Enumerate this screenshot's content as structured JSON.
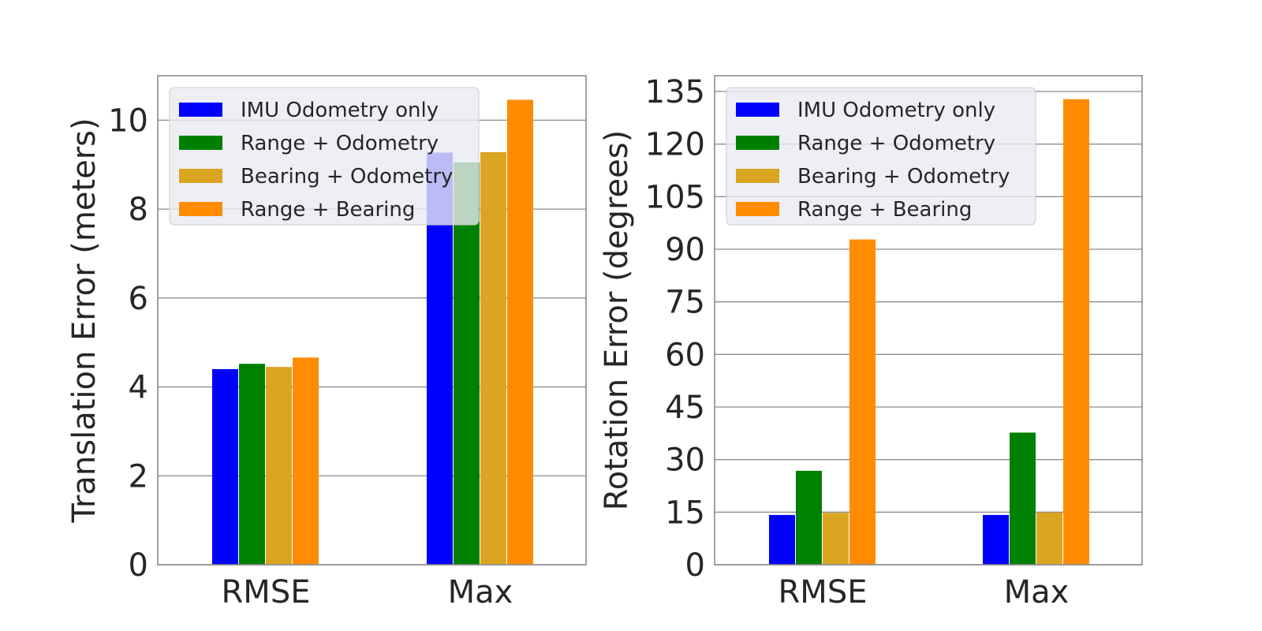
{
  "chart_data": [
    {
      "type": "bar",
      "categories": [
        "RMSE",
        "Max"
      ],
      "series": [
        {
          "name": "IMU Odometry only",
          "color": "#0000ff",
          "values": [
            4.4,
            9.27
          ]
        },
        {
          "name": "Range + Odometry",
          "color": "#008000",
          "values": [
            4.52,
            9.05
          ]
        },
        {
          "name": "Bearing + Odometry",
          "color": "#daa520",
          "values": [
            4.45,
            9.28
          ]
        },
        {
          "name": "Range + Bearing",
          "color": "#ff8c00",
          "values": [
            4.66,
            10.46
          ]
        }
      ],
      "title": "",
      "xlabel": "",
      "ylabel": "Translation Error (meters)",
      "ylim": [
        0,
        11
      ],
      "yticks": [
        0,
        2,
        4,
        6,
        8,
        10
      ],
      "grid": true,
      "legend_position": "upper-left"
    },
    {
      "type": "bar",
      "categories": [
        "RMSE",
        "Max"
      ],
      "series": [
        {
          "name": "IMU Odometry only",
          "color": "#0000ff",
          "values": [
            14.2,
            14.2
          ]
        },
        {
          "name": "Range + Odometry",
          "color": "#008000",
          "values": [
            26.8,
            37.7
          ]
        },
        {
          "name": "Bearing + Odometry",
          "color": "#daa520",
          "values": [
            14.8,
            14.9
          ]
        },
        {
          "name": "Range + Bearing",
          "color": "#ff8c00",
          "values": [
            92.8,
            132.8
          ]
        }
      ],
      "title": "",
      "xlabel": "",
      "ylabel": "Rotation Error (degrees)",
      "ylim": [
        0,
        139.5
      ],
      "yticks": [
        0,
        15,
        30,
        45,
        60,
        75,
        90,
        105,
        120,
        135
      ],
      "grid": true,
      "legend_position": "upper-left"
    }
  ]
}
